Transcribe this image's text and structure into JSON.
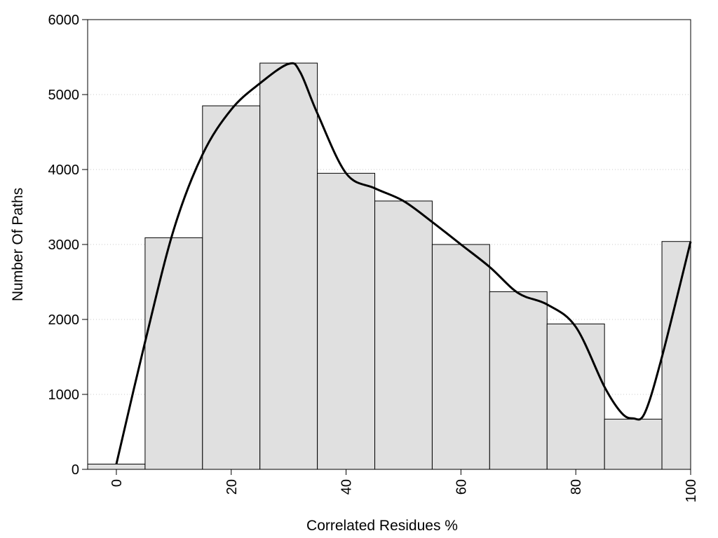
{
  "chart_data": {
    "type": "bar",
    "xlabel": "Correlated Residues %",
    "ylabel": "Number Of Paths",
    "xlim": [
      -5,
      100
    ],
    "ylim": [
      0,
      6000
    ],
    "x_ticks": [
      0,
      20,
      40,
      60,
      80,
      100
    ],
    "y_ticks": [
      0,
      1000,
      2000,
      3000,
      4000,
      5000,
      6000
    ],
    "x_tick_labels": [
      "0",
      "20",
      "40",
      "60",
      "80",
      "100"
    ],
    "y_tick_labels": [
      "0",
      "1000",
      "2000",
      "3000",
      "4000",
      "5000",
      "6000"
    ],
    "grid": "horizontal dotted",
    "bar_color": "#e0e0e0",
    "series": [
      {
        "type": "bar",
        "bins": [
          {
            "start": -5,
            "end": 5,
            "value": 70
          },
          {
            "start": 5,
            "end": 15,
            "value": 3090
          },
          {
            "start": 15,
            "end": 25,
            "value": 4850
          },
          {
            "start": 25,
            "end": 35,
            "value": 5420
          },
          {
            "start": 35,
            "end": 45,
            "value": 3950
          },
          {
            "start": 45,
            "end": 55,
            "value": 3580
          },
          {
            "start": 55,
            "end": 65,
            "value": 3000
          },
          {
            "start": 65,
            "end": 75,
            "value": 2370
          },
          {
            "start": 75,
            "end": 85,
            "value": 1940
          },
          {
            "start": 85,
            "end": 95,
            "value": 670
          },
          {
            "start": 95,
            "end": 100,
            "value": 3040
          }
        ]
      },
      {
        "type": "line",
        "color": "#000000",
        "points": [
          [
            0,
            70
          ],
          [
            5,
            1700
          ],
          [
            10,
            3200
          ],
          [
            15,
            4200
          ],
          [
            20,
            4800
          ],
          [
            25,
            5150
          ],
          [
            30,
            5410
          ],
          [
            32,
            5300
          ],
          [
            35,
            4750
          ],
          [
            40,
            3950
          ],
          [
            45,
            3750
          ],
          [
            50,
            3580
          ],
          [
            55,
            3300
          ],
          [
            60,
            3000
          ],
          [
            65,
            2700
          ],
          [
            70,
            2350
          ],
          [
            75,
            2200
          ],
          [
            80,
            1900
          ],
          [
            85,
            1100
          ],
          [
            88,
            750
          ],
          [
            90,
            680
          ],
          [
            92,
            750
          ],
          [
            95,
            1500
          ],
          [
            100,
            3040
          ]
        ]
      }
    ]
  }
}
